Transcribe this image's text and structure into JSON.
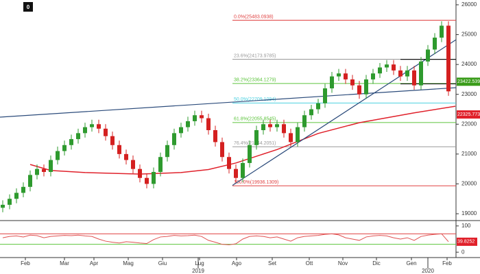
{
  "chart_data": {
    "type": "candlestick",
    "badge": "0",
    "ylim": [
      18840,
      26160
    ],
    "yticks": [
      26000,
      25000,
      24000,
      23000,
      22000,
      21000,
      20000,
      19000
    ],
    "xlim": [
      -0.4,
      66.1
    ],
    "xticks": [
      {
        "value": 3.3,
        "label": "Feb"
      },
      {
        "value": 9,
        "label": "Mar"
      },
      {
        "value": 13.3,
        "label": "Apr"
      },
      {
        "value": 18.3,
        "label": "Mag"
      },
      {
        "value": 23.3,
        "label": "Giu"
      },
      {
        "value": 28.7,
        "label": "Lug"
      },
      {
        "value": 34.1,
        "label": "Ago"
      },
      {
        "value": 39.3,
        "label": "Set"
      },
      {
        "value": 44.7,
        "label": "Ott"
      },
      {
        "value": 49.6,
        "label": "Nov"
      },
      {
        "value": 54.5,
        "label": "Dic"
      },
      {
        "value": 59.6,
        "label": "Gen"
      },
      {
        "value": 64.8,
        "label": "Feb"
      }
    ],
    "year_ticks": [
      {
        "value": 28.5,
        "label": "2019"
      },
      {
        "value": 62,
        "label": "2020"
      }
    ],
    "up_color": "#2e9a2e",
    "down_color": "#d42020",
    "open": [
      19200,
      19300,
      19500,
      19700,
      19900,
      20300,
      20500,
      20400,
      20800,
      21100,
      21300,
      21500,
      21700,
      21900,
      22000,
      21850,
      21600,
      21300,
      21000,
      20800,
      20500,
      20200,
      20000,
      20400,
      20900,
      21300,
      21700,
      21900,
      22100,
      22300,
      22200,
      21800,
      21400,
      20900,
      20500,
      20200,
      20700,
      21300,
      21800,
      22000,
      21900,
      22000,
      21700,
      21400,
      21900,
      22300,
      22500,
      22700,
      23200,
      23600,
      23700,
      23500,
      23300,
      23000,
      23500,
      23700,
      23900,
      24000,
      23800,
      23600,
      23800,
      23300,
      24100,
      24500,
      24900,
      25300
    ],
    "high": [
      19450,
      19650,
      19850,
      20050,
      20450,
      20650,
      20650,
      20950,
      21250,
      21450,
      21650,
      21850,
      22050,
      22150,
      22150,
      22000,
      21750,
      21450,
      21150,
      20950,
      20650,
      20350,
      20550,
      21050,
      21450,
      21850,
      22050,
      22250,
      22450,
      22450,
      22350,
      21950,
      21550,
      21050,
      20650,
      20850,
      21450,
      21950,
      22150,
      22150,
      22150,
      22150,
      21850,
      22050,
      22450,
      22650,
      22850,
      23350,
      23750,
      23850,
      23850,
      23650,
      23450,
      23650,
      23850,
      24050,
      24150,
      24150,
      23950,
      23950,
      23950,
      24250,
      24650,
      25050,
      25450,
      25450
    ],
    "low": [
      19050,
      19150,
      19350,
      19550,
      19750,
      20150,
      20250,
      20250,
      20650,
      20950,
      21150,
      21350,
      21550,
      21750,
      21700,
      21450,
      21150,
      20850,
      20650,
      20350,
      20050,
      19850,
      19850,
      20250,
      20750,
      21150,
      21550,
      21750,
      21950,
      22050,
      21650,
      21250,
      20750,
      20350,
      20050,
      20050,
      20550,
      21150,
      21650,
      21750,
      21750,
      21550,
      21250,
      21250,
      21750,
      22150,
      22350,
      22550,
      23050,
      23450,
      23350,
      23150,
      22850,
      22850,
      23350,
      23550,
      23750,
      23650,
      23450,
      23450,
      23150,
      23150,
      23950,
      24350,
      24750,
      22950
    ],
    "close": [
      19300,
      19500,
      19700,
      19900,
      20300,
      20500,
      20400,
      20800,
      21100,
      21300,
      21500,
      21700,
      21900,
      22000,
      21850,
      21600,
      21300,
      21000,
      20800,
      20500,
      20200,
      20000,
      20400,
      20900,
      21300,
      21700,
      21900,
      22100,
      22300,
      22200,
      21800,
      21400,
      20900,
      20500,
      20200,
      20700,
      21300,
      21800,
      22000,
      21900,
      22000,
      21700,
      21400,
      21900,
      22300,
      22500,
      22700,
      23200,
      23600,
      23700,
      23500,
      23300,
      23000,
      23500,
      23700,
      23900,
      24000,
      23800,
      23600,
      23800,
      23300,
      24100,
      24500,
      24900,
      25300,
      23100
    ],
    "moving_average": {
      "color": "#e0202a",
      "x": [
        4,
        7,
        12,
        20,
        26,
        30,
        34,
        40,
        46,
        52,
        60,
        66
      ],
      "values": [
        20650,
        20450,
        20380,
        20330,
        20380,
        20480,
        20700,
        21150,
        21690,
        22050,
        22380,
        22600
      ]
    },
    "trendlines": [
      {
        "color": "#2a4a7a",
        "x": [
          -0.4,
          66.1
        ],
        "y": [
          22236,
          23223
        ]
      },
      {
        "color": "#2a4a7a",
        "x": [
          33.5,
          66.1
        ],
        "y": [
          19950,
          24830
        ]
      },
      {
        "color": "#111111",
        "x": [
          58,
          66.1
        ],
        "y": [
          24173,
          24173
        ]
      },
      {
        "color": "#111111",
        "x": [
          58,
          66.1
        ],
        "y": [
          23350,
          23350
        ]
      }
    ],
    "fib_start": 33.5,
    "fib_levels": [
      {
        "label": "0.0%(25483.0938)",
        "value": 25483.0938,
        "color": "#e04040"
      },
      {
        "label": "23.6%(24173.9785)",
        "value": 24173.9785,
        "color": "#999999"
      },
      {
        "label": "38.2%(23364.1279)",
        "value": 23364.1279,
        "color": "#5cc43c"
      },
      {
        "label": "50.0%(22709.1094)",
        "value": 22709.1094,
        "color": "#4ad0e0"
      },
      {
        "label": "61.8%(22055.8545)",
        "value": 22055.8545,
        "color": "#5cc43c"
      },
      {
        "label": "76.4%(21244.2051)",
        "value": 21244.2051,
        "color": "#999999"
      },
      {
        "label": "100.0%(19936.1309)",
        "value": 19936.1309,
        "color": "#e04040"
      }
    ],
    "last_labels": [
      {
        "value": 23422.5391,
        "label": "23422.5391",
        "color": "#3a9c1a"
      },
      {
        "value": 22325.7734,
        "label": "22325.7734",
        "color": "#e0202a"
      }
    ],
    "rsi": {
      "ylim": [
        -10,
        110
      ],
      "yticks": [
        100,
        0
      ],
      "upper": 70,
      "lower": 30,
      "upper_color": "#e04040",
      "lower_color": "#5cc43c",
      "color": "#e05050",
      "values": [
        55,
        60,
        62,
        58,
        65,
        63,
        55,
        60,
        62,
        64,
        63,
        65,
        62,
        60,
        50,
        42,
        38,
        35,
        40,
        38,
        35,
        33,
        48,
        58,
        60,
        64,
        62,
        63,
        65,
        60,
        45,
        38,
        30,
        28,
        32,
        50,
        60,
        62,
        60,
        55,
        58,
        50,
        42,
        55,
        60,
        62,
        64,
        68,
        70,
        66,
        55,
        50,
        45,
        58,
        62,
        64,
        62,
        55,
        50,
        55,
        45,
        60,
        65,
        68,
        70,
        40
      ],
      "last": {
        "value": 39.8252,
        "label": "39.8252",
        "color": "#e0202a"
      }
    }
  }
}
